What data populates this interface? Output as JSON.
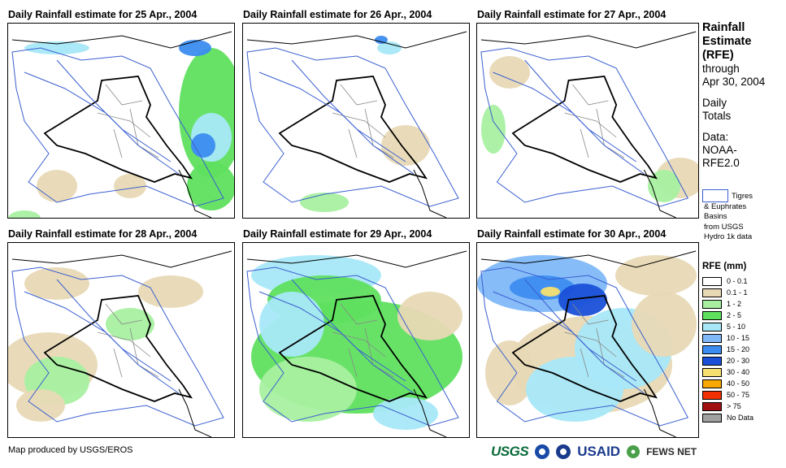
{
  "panels": [
    {
      "title": "Daily Rainfall estimate for 25 Apr., 2004"
    },
    {
      "title": "Daily Rainfall estimate for 26 Apr., 2004"
    },
    {
      "title": "Daily Rainfall estimate for 27 Apr., 2004"
    },
    {
      "title": "Daily Rainfall estimate for 28 Apr., 2004"
    },
    {
      "title": "Daily Rainfall estimate for 29 Apr., 2004"
    },
    {
      "title": "Daily Rainfall estimate for 30 Apr., 2004"
    }
  ],
  "side": {
    "line1": "Rainfall",
    "line2": "Estimate",
    "line3": "(RFE)",
    "line4": "through",
    "line5": "Apr 30, 2004",
    "line6": "Daily",
    "line7": "Totals",
    "line8": "Data:",
    "line9": "NOAA-",
    "line10": "RFE2.0"
  },
  "basin_legend": {
    "l1": "Tigres",
    "l2": "& Euphrates",
    "l3": "Basins",
    "l4": "from USGS",
    "l5": "Hydro 1k data"
  },
  "legend": {
    "title": "RFE (mm)",
    "items": [
      {
        "label": "0 - 0.1",
        "color": "#ffffff"
      },
      {
        "label": "0.1 - 1",
        "color": "#e8d9b5"
      },
      {
        "label": "1 - 2",
        "color": "#a8f0a0"
      },
      {
        "label": "2 - 5",
        "color": "#5fe05f"
      },
      {
        "label": "5 - 10",
        "color": "#a8e8f8"
      },
      {
        "label": "10 - 15",
        "color": "#80b8f8"
      },
      {
        "label": "15 - 20",
        "color": "#3c8cf0"
      },
      {
        "label": "20 - 30",
        "color": "#1a50d8"
      },
      {
        "label": "30 - 40",
        "color": "#f8e070"
      },
      {
        "label": "40 - 50",
        "color": "#f8a800"
      },
      {
        "label": "50 - 75",
        "color": "#f03000"
      },
      {
        "label": "> 75",
        "color": "#a01010"
      },
      {
        "label": "No Data",
        "color": "#a0a0a0"
      }
    ]
  },
  "credit": "Map produced by USGS/EROS",
  "logos": {
    "usgs": "USGS",
    "usaid": "USAID",
    "fews": "FEWS NET"
  }
}
